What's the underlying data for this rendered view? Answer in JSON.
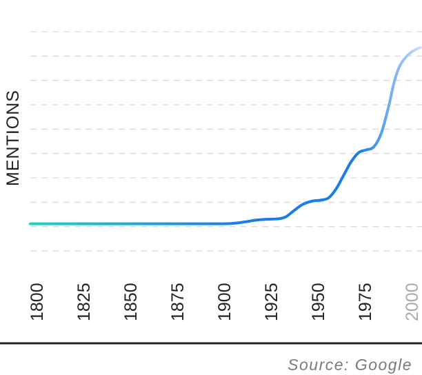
{
  "chart_data": {
    "type": "line",
    "title": "",
    "xlabel": "",
    "ylabel": "MENTIONS",
    "x_ticks": [
      "1800",
      "1825",
      "1850",
      "1875",
      "1900",
      "1925",
      "1950",
      "1975",
      "2000"
    ],
    "faded_ticks": [
      "2000"
    ],
    "xlim": [
      1800,
      2008
    ],
    "ylim": [
      -1.2,
      8.5
    ],
    "grid": true,
    "legend": "none",
    "series": [
      {
        "x": [
          1800,
          1825,
          1850,
          1875,
          1900,
          1908,
          1914,
          1920,
          1926,
          1932,
          1936,
          1940,
          1945,
          1950,
          1955,
          1959,
          1963,
          1967,
          1971,
          1975,
          1979,
          1983,
          1987,
          1991,
          1994,
          1997,
          2001,
          2005,
          2008
        ],
        "values": [
          0,
          0,
          0,
          0,
          0,
          0.02,
          0.08,
          0.16,
          0.2,
          0.22,
          0.3,
          0.55,
          0.85,
          1.0,
          1.05,
          1.15,
          1.55,
          2.15,
          2.75,
          3.15,
          3.27,
          3.4,
          4.0,
          5.2,
          6.3,
          7.0,
          7.45,
          7.7,
          7.8
        ]
      }
    ],
    "colors": {
      "line_start": "#1bd3c0",
      "line_mid": "#1a7ce6",
      "line_end": "#cfe0ff",
      "grid": "#dddddd"
    }
  },
  "source_label": "Source: Google"
}
